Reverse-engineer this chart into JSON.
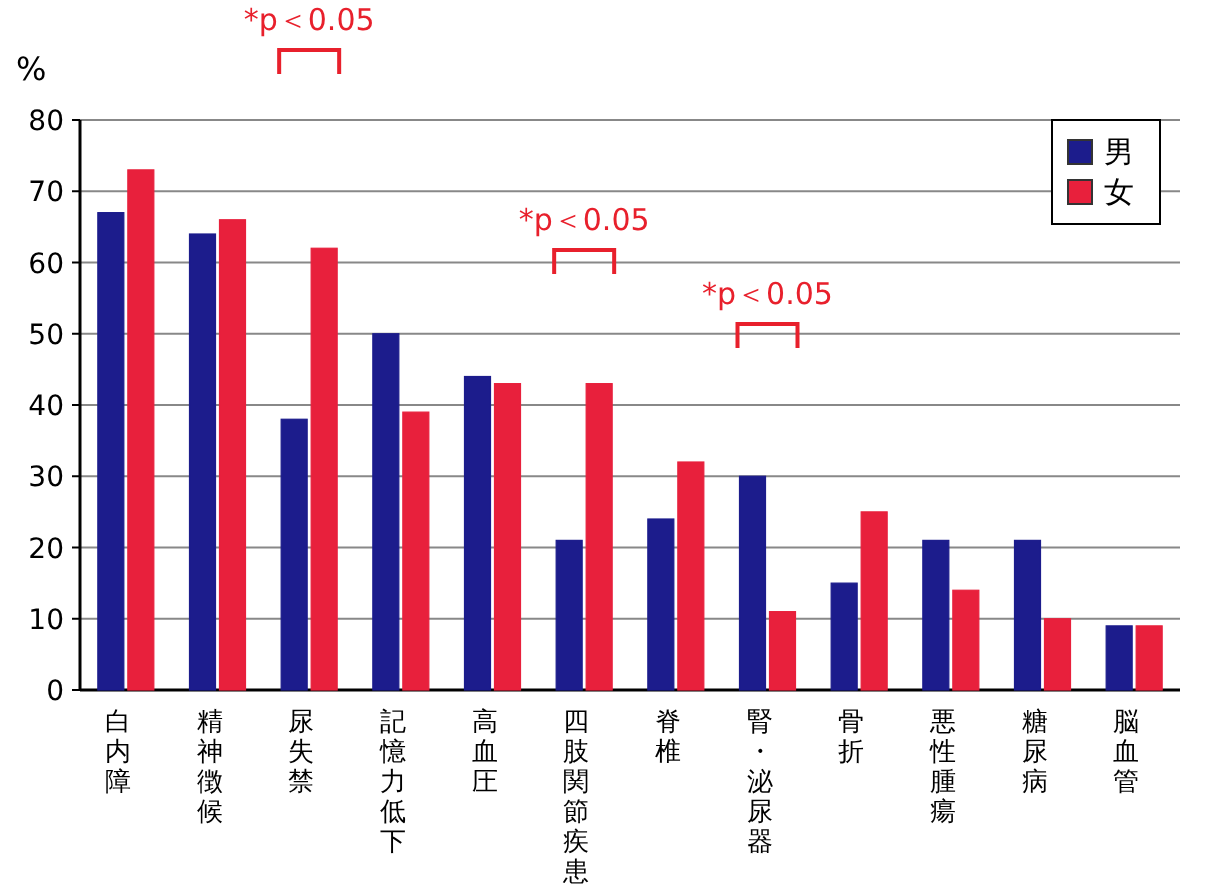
{
  "chart_data": {
    "type": "bar",
    "ylabel": "%",
    "categories": [
      "白内障",
      "精神徴候",
      "尿失禁",
      "記憶力低下",
      "高血圧",
      "四肢関節疾患",
      "脊椎",
      "腎・泌尿器",
      "骨折",
      "悪性腫瘍",
      "糖尿病",
      "脳血管"
    ],
    "series": [
      {
        "name": "男",
        "color": "#1c1c8c",
        "values": [
          67,
          64,
          38,
          50,
          44,
          21,
          24,
          30,
          15,
          21,
          21,
          9
        ]
      },
      {
        "name": "女",
        "color": "#e8203c",
        "values": [
          73,
          66,
          62,
          39,
          43,
          43,
          32,
          11,
          25,
          14,
          10,
          9
        ]
      }
    ],
    "ylim": [
      0,
      80
    ],
    "yticks": [
      0,
      10,
      20,
      30,
      40,
      50,
      60,
      70,
      80
    ],
    "grid": "y",
    "legend": "top right",
    "annotations": [
      "*p＜0.05",
      "*p＜0.05",
      "*p＜0.05"
    ]
  }
}
